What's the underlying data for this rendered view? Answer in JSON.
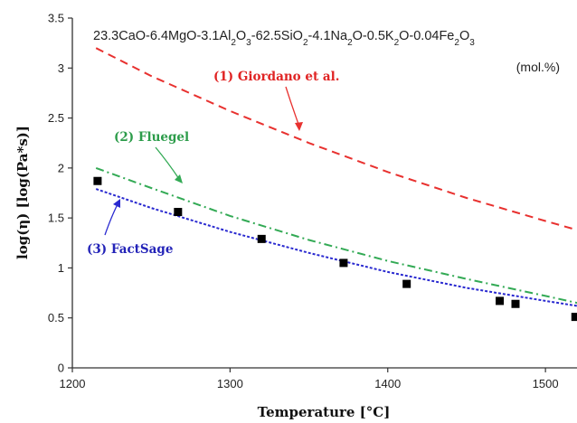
{
  "chart_data": {
    "type": "line",
    "composition_label": {
      "parts": [
        {
          "t": "23.3CaO-6.4MgO-3.1Al",
          "sub": false
        },
        {
          "t": "2",
          "sub": true
        },
        {
          "t": "O",
          "sub": false
        },
        {
          "t": "3",
          "sub": true
        },
        {
          "t": "-62.5SiO",
          "sub": false
        },
        {
          "t": "2",
          "sub": true
        },
        {
          "t": "-4.1Na",
          "sub": false
        },
        {
          "t": "2",
          "sub": true
        },
        {
          "t": "O-0.5K",
          "sub": false
        },
        {
          "t": "2",
          "sub": true
        },
        {
          "t": "O-0.04Fe",
          "sub": false
        },
        {
          "t": "2",
          "sub": true
        },
        {
          "t": "O",
          "sub": false
        },
        {
          "t": "3",
          "sub": true
        }
      ]
    },
    "units_note": "(mol.%)",
    "xlabel": "Temperature [°C]",
    "ylabel": "log(η) [log(Pa*s)]",
    "xlim": [
      1200,
      1520
    ],
    "ylim": [
      0,
      3.5
    ],
    "xticks": [
      1200,
      1300,
      1400,
      1500
    ],
    "yticks": [
      0,
      0.5,
      1,
      1.5,
      2,
      2.5,
      3,
      3.5
    ],
    "yticks_labels": [
      "0",
      "0.5",
      "1",
      "1.5",
      "2",
      "2.5",
      "3",
      "3.5"
    ],
    "grid": false,
    "series": [
      {
        "name": "(1) Giordano et al.",
        "style": "dashed",
        "color": "#e8312f",
        "x": [
          1215,
          1250,
          1300,
          1350,
          1400,
          1450,
          1500,
          1520
        ],
        "y": [
          3.2,
          2.92,
          2.57,
          2.25,
          1.96,
          1.7,
          1.47,
          1.38
        ]
      },
      {
        "name": "(2) Fluegel",
        "style": "dashdot",
        "color": "#33aa55",
        "x": [
          1215,
          1250,
          1300,
          1350,
          1400,
          1450,
          1500,
          1520
        ],
        "y": [
          2.0,
          1.8,
          1.52,
          1.28,
          1.07,
          0.89,
          0.72,
          0.65
        ]
      },
      {
        "name": "(3) FactSage",
        "style": "dotted",
        "color": "#2a2ad0",
        "x": [
          1215,
          1250,
          1300,
          1350,
          1400,
          1450,
          1500,
          1520
        ],
        "y": [
          1.79,
          1.6,
          1.36,
          1.15,
          0.96,
          0.8,
          0.67,
          0.62
        ]
      },
      {
        "name": "",
        "style": "markers",
        "color": "#000000",
        "x": [
          1216,
          1267,
          1320,
          1372,
          1412,
          1471,
          1481,
          1519
        ],
        "y": [
          1.87,
          1.56,
          1.29,
          1.05,
          0.84,
          0.67,
          0.64,
          0.51
        ]
      }
    ]
  }
}
